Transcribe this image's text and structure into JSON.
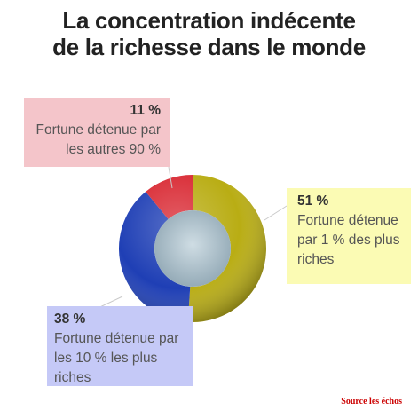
{
  "title_line1": "La concentration indécente",
  "title_line2": "de la richesse dans le monde",
  "source": "Source les échos",
  "chart_data": {
    "type": "pie",
    "variant": "donut",
    "title": "La concentration indécente de la richesse dans le monde",
    "slices": [
      {
        "label": "Fortune détenue par 1 % des plus riches",
        "value": 51,
        "value_label": "51 %",
        "color": "#b9ad14"
      },
      {
        "label": "Fortune détenue par les 10 % les plus riches",
        "value": 38,
        "value_label": "38 %",
        "color": "#1f3fb5"
      },
      {
        "label": "Fortune détenue par les autres 90 %",
        "value": 11,
        "value_label": "11 %",
        "color": "#d92a34"
      }
    ]
  },
  "callouts": {
    "red": {
      "pct": "11 %",
      "text": "Fortune détenue par les autres 90 %",
      "color": "#f4c5ca"
    },
    "yellow": {
      "pct": "51 %",
      "text": "Fortune détenue par 1 % des plus riches",
      "color": "#fbfbb4"
    },
    "blue": {
      "pct": "38 %",
      "text": "Fortune détenue par les 10 % les plus riches",
      "color": "#c5c9f7"
    }
  }
}
